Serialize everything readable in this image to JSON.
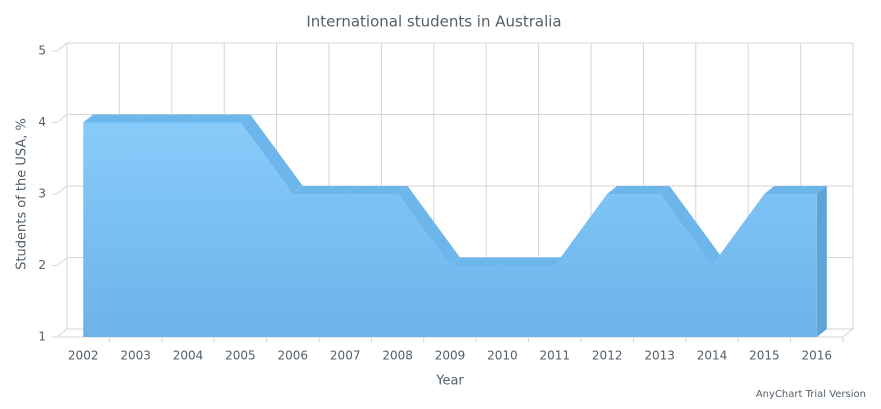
{
  "chart_data": {
    "type": "area3d",
    "title": "International students in Australia",
    "x_label": "Year",
    "y_label": "Students of the USA, %",
    "categories": [
      "2002",
      "2003",
      "2004",
      "2005",
      "2006",
      "2007",
      "2008",
      "2009",
      "2010",
      "2011",
      "2012",
      "2013",
      "2014",
      "2015",
      "2016"
    ],
    "values": [
      4,
      4,
      4,
      4,
      3,
      3,
      3,
      2,
      2,
      2,
      3,
      3,
      2,
      3,
      3
    ],
    "color": "#7ec0f4",
    "ylim": [
      1,
      5
    ],
    "yticks": [
      1,
      2,
      3,
      4,
      5
    ],
    "grid": true,
    "credits": "AnyChart Trial Version"
  }
}
